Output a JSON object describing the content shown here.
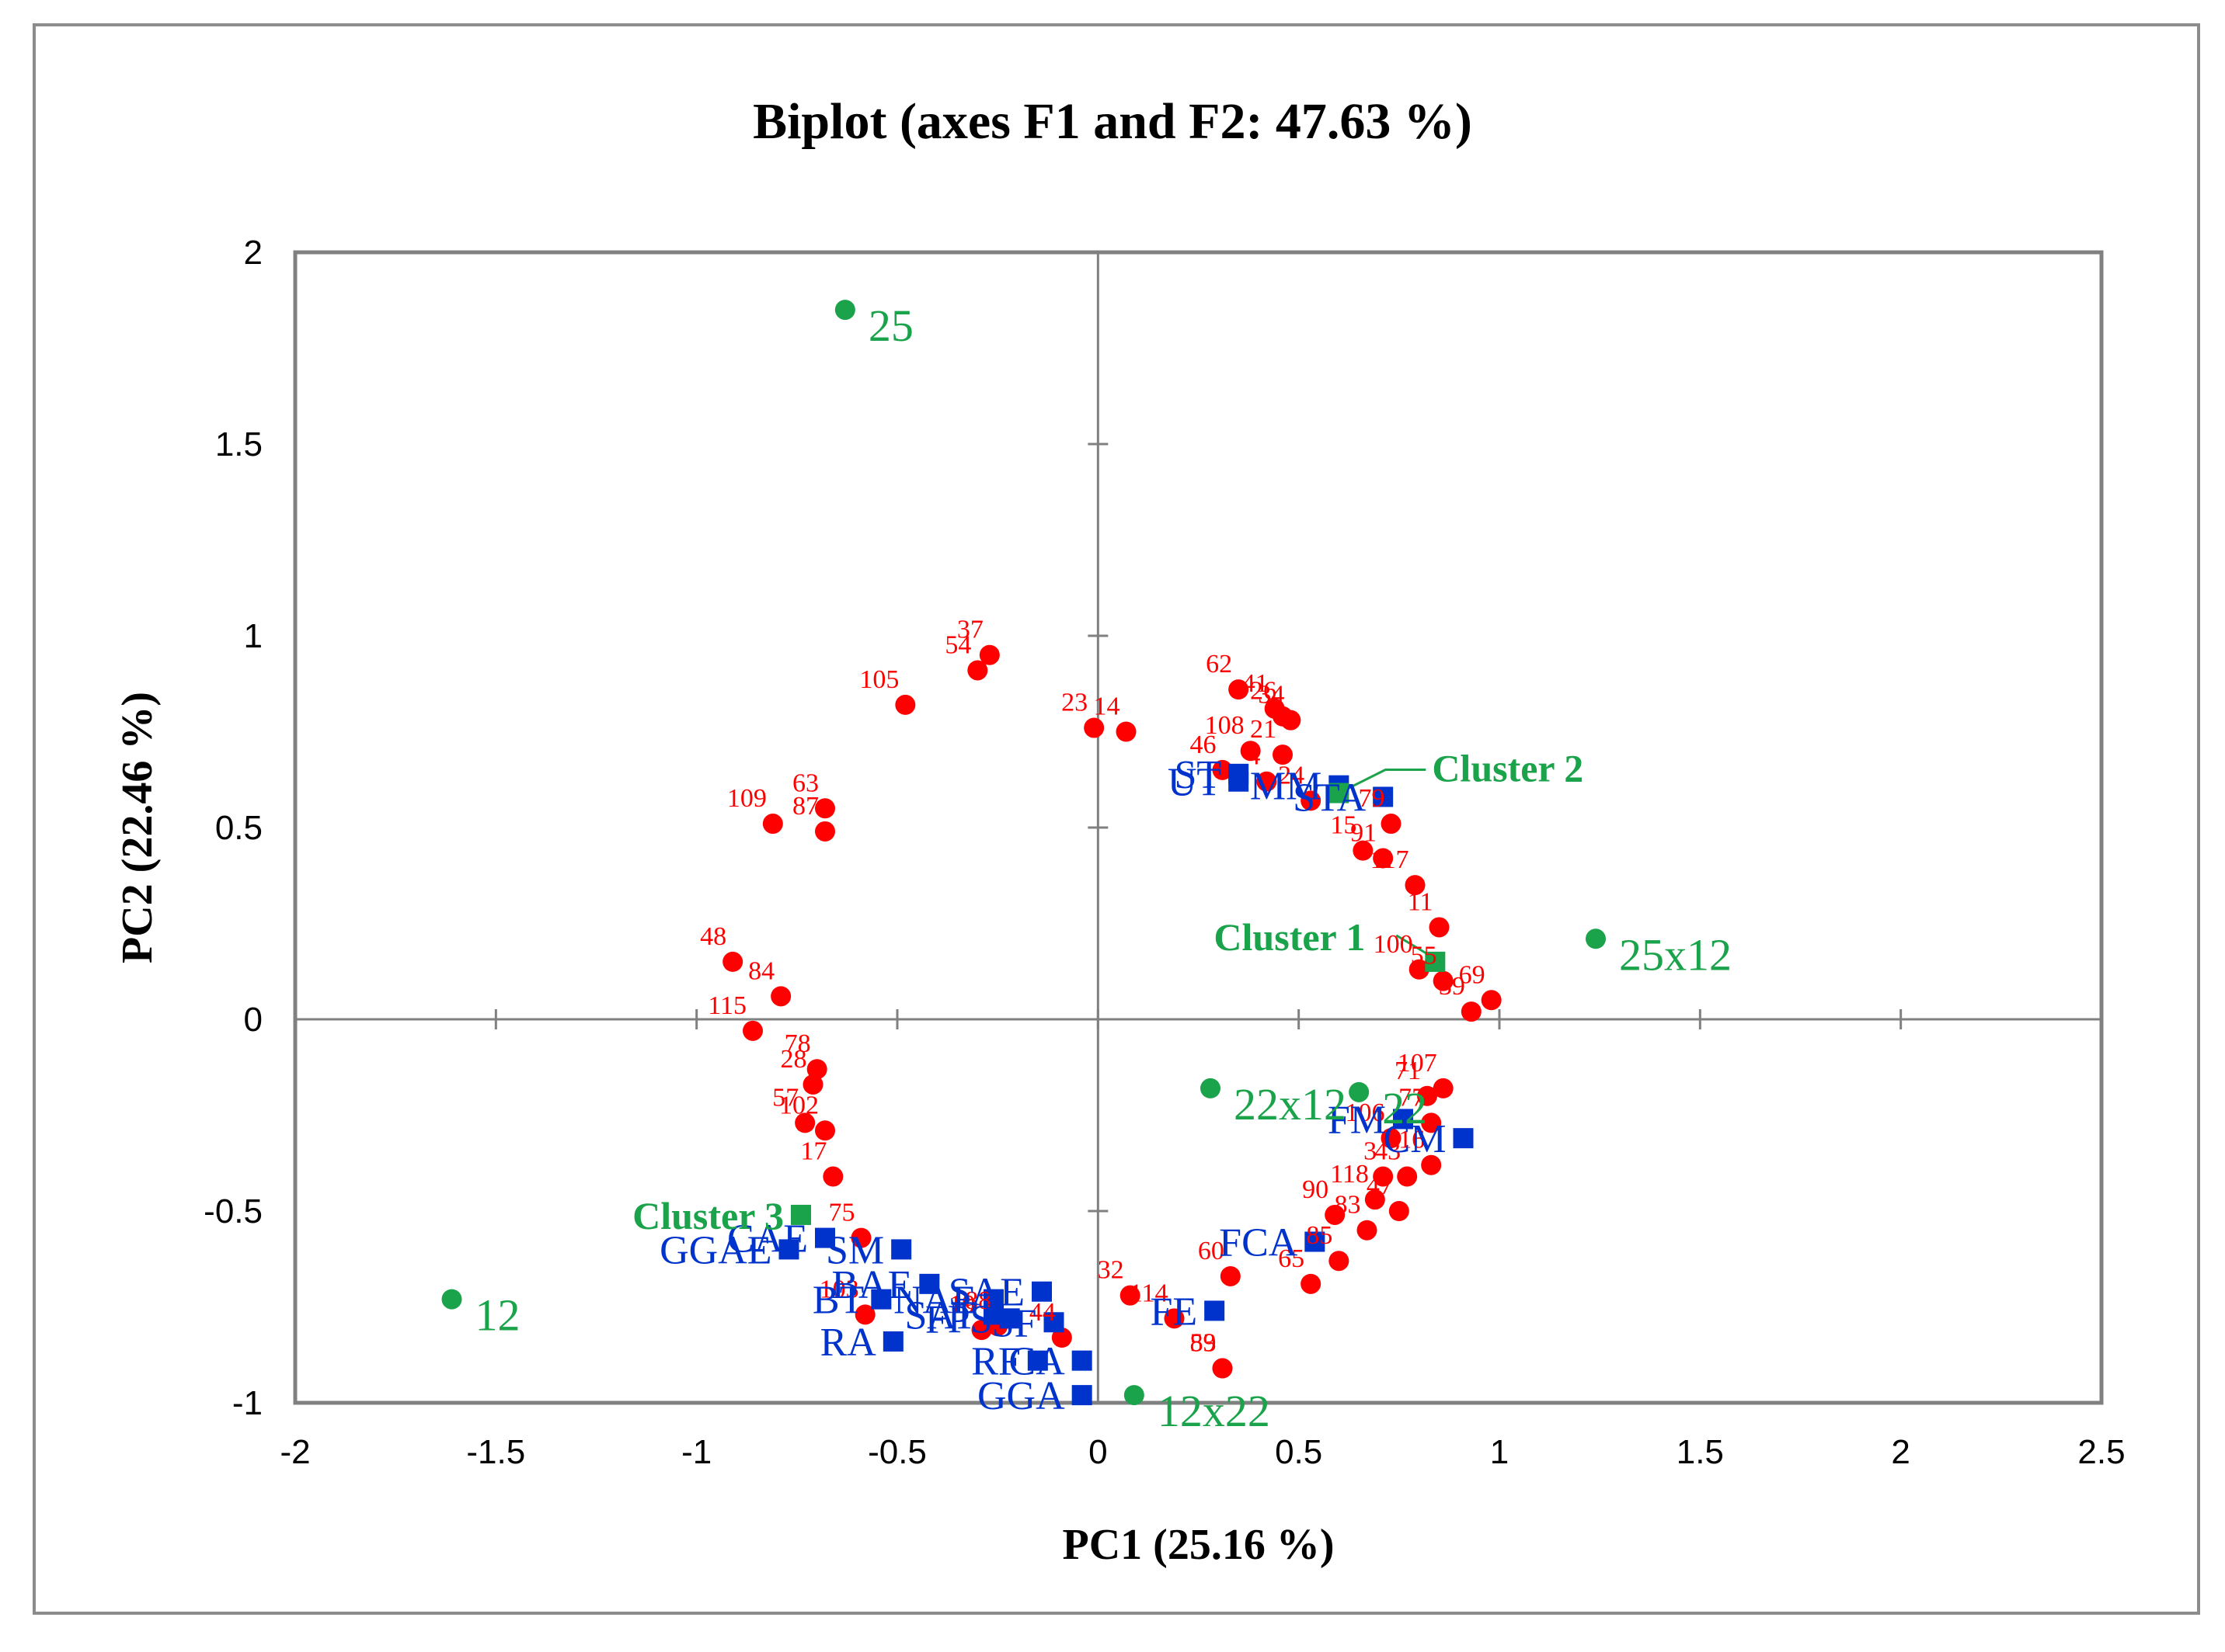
{
  "chart_data": {
    "type": "scatter",
    "title": "Biplot (axes F1 and F2: 47.63 %)",
    "xlabel": "PC1 (25.16 %)",
    "ylabel": "PC2 (22.46 %)",
    "xlim": [
      -2,
      2.5
    ],
    "ylim": [
      -1,
      2
    ],
    "xticks": [
      "-2",
      "-1.5",
      "-1",
      "-0.5",
      "0",
      "0.5",
      "1",
      "1.5",
      "2",
      "2.5"
    ],
    "yticks": [
      "-1",
      "-0.5",
      "0",
      "0.5",
      "1",
      "1.5",
      "2"
    ],
    "colors": {
      "observations": "#ff0000",
      "variables": "#0033cc",
      "groups": "#1aa34a",
      "axes": "#808080"
    },
    "observations": [
      {
        "label": "37",
        "x": -0.27,
        "y": 0.95
      },
      {
        "label": "54",
        "x": -0.3,
        "y": 0.91
      },
      {
        "label": "105",
        "x": -0.48,
        "y": 0.82
      },
      {
        "label": "23",
        "x": -0.01,
        "y": 0.76
      },
      {
        "label": "14",
        "x": 0.07,
        "y": 0.75
      },
      {
        "label": "62",
        "x": 0.35,
        "y": 0.86
      },
      {
        "label": "41",
        "x": 0.44,
        "y": 0.81
      },
      {
        "label": "26",
        "x": 0.46,
        "y": 0.79
      },
      {
        "label": "34",
        "x": 0.48,
        "y": 0.78
      },
      {
        "label": "108",
        "x": 0.38,
        "y": 0.7
      },
      {
        "label": "21",
        "x": 0.46,
        "y": 0.69
      },
      {
        "label": "46",
        "x": 0.31,
        "y": 0.65
      },
      {
        "label": "4",
        "x": 0.42,
        "y": 0.62
      },
      {
        "label": "24",
        "x": 0.53,
        "y": 0.57
      },
      {
        "label": "79",
        "x": 0.73,
        "y": 0.51
      },
      {
        "label": "91",
        "x": 0.71,
        "y": 0.42
      },
      {
        "label": "15",
        "x": 0.66,
        "y": 0.44
      },
      {
        "label": "117",
        "x": 0.79,
        "y": 0.35
      },
      {
        "label": "63",
        "x": -0.68,
        "y": 0.55
      },
      {
        "label": "109",
        "x": -0.81,
        "y": 0.51
      },
      {
        "label": "87",
        "x": -0.68,
        "y": 0.49
      },
      {
        "label": "48",
        "x": -0.91,
        "y": 0.15
      },
      {
        "label": "84",
        "x": -0.79,
        "y": 0.06
      },
      {
        "label": "100",
        "x": 0.8,
        "y": 0.13
      },
      {
        "label": "11",
        "x": 0.85,
        "y": 0.24
      },
      {
        "label": "55",
        "x": 0.86,
        "y": 0.1
      },
      {
        "label": "69",
        "x": 0.98,
        "y": 0.05
      },
      {
        "label": "39",
        "x": 0.93,
        "y": 0.02
      },
      {
        "label": "115",
        "x": -0.86,
        "y": -0.03
      },
      {
        "label": "78",
        "x": -0.7,
        "y": -0.13
      },
      {
        "label": "28",
        "x": -0.71,
        "y": -0.17
      },
      {
        "label": "57",
        "x": -0.73,
        "y": -0.27
      },
      {
        "label": "102",
        "x": -0.68,
        "y": -0.29
      },
      {
        "label": "17",
        "x": -0.66,
        "y": -0.41
      },
      {
        "label": "107",
        "x": 0.86,
        "y": -0.18
      },
      {
        "label": "71",
        "x": 0.82,
        "y": -0.2
      },
      {
        "label": "77",
        "x": 0.83,
        "y": -0.27
      },
      {
        "label": "106",
        "x": 0.73,
        "y": -0.31
      },
      {
        "label": "16",
        "x": 0.83,
        "y": -0.38
      },
      {
        "label": "43",
        "x": 0.77,
        "y": -0.41
      },
      {
        "label": "3",
        "x": 0.71,
        "y": -0.41
      },
      {
        "label": "118",
        "x": 0.69,
        "y": -0.47
      },
      {
        "label": "47",
        "x": 0.75,
        "y": -0.5
      },
      {
        "label": "90",
        "x": 0.59,
        "y": -0.51
      },
      {
        "label": "83",
        "x": 0.67,
        "y": -0.55
      },
      {
        "label": "85",
        "x": 0.6,
        "y": -0.63
      },
      {
        "label": "65",
        "x": 0.53,
        "y": -0.69
      },
      {
        "label": "60",
        "x": 0.33,
        "y": -0.67
      },
      {
        "label": "75",
        "x": -0.59,
        "y": -0.57
      },
      {
        "label": "103",
        "x": -0.58,
        "y": -0.77
      },
      {
        "label": "19",
        "x": -0.29,
        "y": -0.81
      },
      {
        "label": "88",
        "x": -0.25,
        "y": -0.8
      },
      {
        "label": "44",
        "x": -0.09,
        "y": -0.83
      },
      {
        "label": "32",
        "x": 0.08,
        "y": -0.72
      },
      {
        "label": "114",
        "x": 0.19,
        "y": -0.78
      },
      {
        "label": "89",
        "x": 0.31,
        "y": -0.91
      },
      {
        "label": "53",
        "x": 0.31,
        "y": -0.91
      }
    ],
    "variables": [
      {
        "label": "MM",
        "x": 0.6,
        "y": 0.61
      },
      {
        "label": "ST",
        "x": 0.35,
        "y": 0.64
      },
      {
        "label": "UT",
        "x": 0.35,
        "y": 0.62
      },
      {
        "label": "STA",
        "x": 0.71,
        "y": 0.58
      },
      {
        "label": "FM",
        "x": 0.76,
        "y": -0.26
      },
      {
        "label": "CM",
        "x": 0.91,
        "y": -0.31
      },
      {
        "label": "FCA",
        "x": 0.54,
        "y": -0.58
      },
      {
        "label": "CAE",
        "x": -0.68,
        "y": -0.57
      },
      {
        "label": "SM",
        "x": -0.49,
        "y": -0.6
      },
      {
        "label": "GGAE",
        "x": -0.77,
        "y": -0.6
      },
      {
        "label": "BAE",
        "x": -0.42,
        "y": -0.69
      },
      {
        "label": "BT",
        "x": -0.54,
        "y": -0.73
      },
      {
        "label": "SAE",
        "x": -0.14,
        "y": -0.71
      },
      {
        "label": "RA",
        "x": -0.51,
        "y": -0.84
      },
      {
        "label": "NAE",
        "x": -0.26,
        "y": -0.73
      },
      {
        "label": "FPS",
        "x": -0.22,
        "y": -0.78
      },
      {
        "label": "SF",
        "x": -0.11,
        "y": -0.79
      },
      {
        "label": "SAT",
        "x": -0.26,
        "y": -0.77
      },
      {
        "label": "GGA",
        "x": -0.04,
        "y": -0.98
      },
      {
        "label": "CA",
        "x": -0.04,
        "y": -0.89
      },
      {
        "label": "RF",
        "x": -0.15,
        "y": -0.89
      },
      {
        "label": "FE",
        "x": 0.29,
        "y": -0.76
      }
    ],
    "groups": [
      {
        "label": "25",
        "x": -0.63,
        "y": 1.85
      },
      {
        "label": "25x12",
        "x": 1.24,
        "y": 0.21
      },
      {
        "label": "22x12",
        "x": 0.28,
        "y": -0.18
      },
      {
        "label": "22",
        "x": 0.65,
        "y": -0.19
      },
      {
        "label": "12",
        "x": -1.61,
        "y": -0.73
      },
      {
        "label": "12x22",
        "x": 0.09,
        "y": -0.98
      }
    ],
    "clusters": [
      {
        "label": "Cluster 2",
        "x": 0.6,
        "y": 0.59
      },
      {
        "label": "Cluster 1",
        "x": 0.84,
        "y": 0.15
      },
      {
        "label": "Cluster 3",
        "x": -0.74,
        "y": -0.51
      }
    ]
  }
}
